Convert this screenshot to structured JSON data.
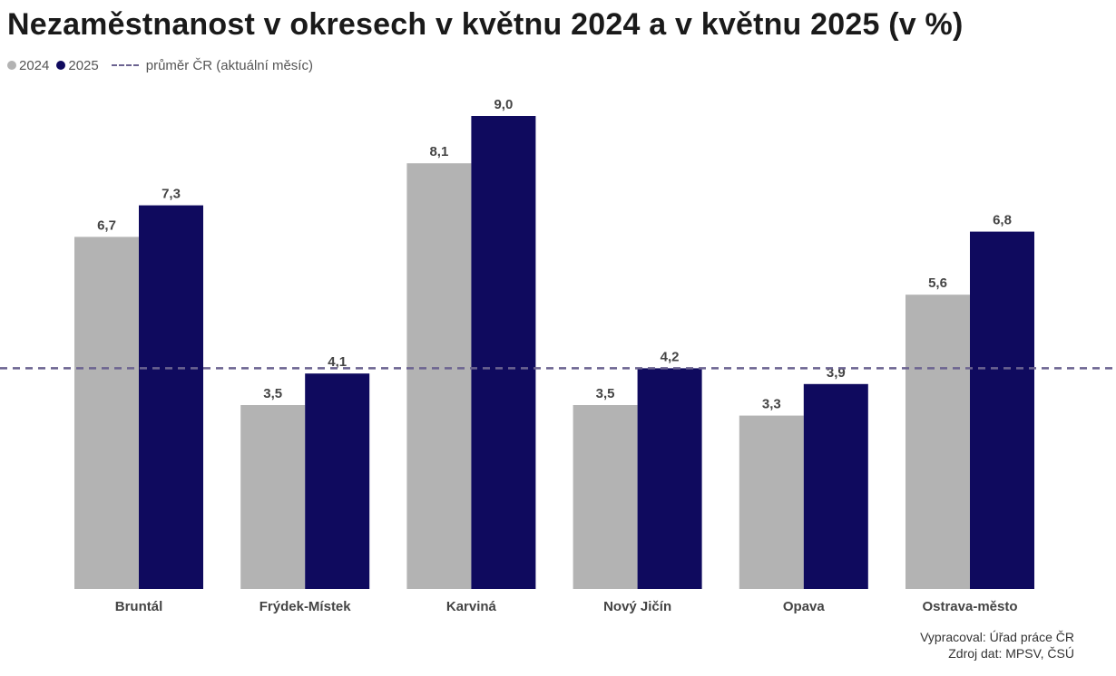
{
  "title": "Nezaměstnanost v okresech v květnu 2024 a v květnu 2025 (v %)",
  "legend": {
    "series_2024": "2024",
    "series_2025": "2025",
    "average": "průměr ČR (aktuální měsíc)"
  },
  "source": {
    "prepared_by": "Vypracoval: Úřad práce ČR",
    "data_source": "Zdroj dat: MPSV, ČSÚ"
  },
  "colors": {
    "series_2024": "#b3b3b3",
    "series_2025": "#0f0a5e",
    "average_line": "#6b6390"
  },
  "chart_data": {
    "type": "bar",
    "categories": [
      "Bruntál",
      "Frýdek-Místek",
      "Karviná",
      "Nový Jičín",
      "Opava",
      "Ostrava-město"
    ],
    "series": [
      {
        "name": "2024",
        "values": [
          6.7,
          3.5,
          8.1,
          3.5,
          3.3,
          5.6
        ],
        "labels": [
          "6,7",
          "3,5",
          "8,1",
          "3,5",
          "3,3",
          "5,6"
        ]
      },
      {
        "name": "2025",
        "values": [
          7.3,
          4.1,
          9.0,
          4.2,
          3.9,
          6.8
        ],
        "labels": [
          "7,3",
          "4,1",
          "9,0",
          "4,2",
          "3,9",
          "6,8"
        ]
      }
    ],
    "reference_line": {
      "name": "průměr ČR (aktuální měsíc)",
      "value": 4.2,
      "style": "dashed"
    },
    "ylim": [
      0,
      9.0
    ],
    "grid": false,
    "legend_position": "top-left"
  }
}
